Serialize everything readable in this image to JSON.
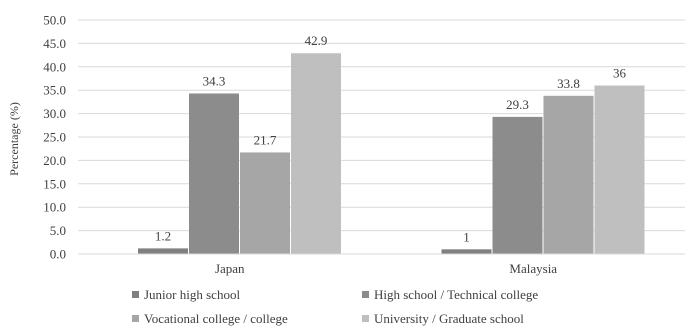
{
  "chart_data": {
    "type": "bar",
    "title": "",
    "xlabel": "",
    "ylabel": "Percentage (%)",
    "ylim": [
      0,
      50
    ],
    "ytick_step": 5,
    "ytick_format_decimals": 1,
    "grid": "horizontal",
    "legend_position": "bottom",
    "categories": [
      "Japan",
      "Malaysia"
    ],
    "series": [
      {
        "name": "Junior high school",
        "values": [
          1.2,
          1
        ],
        "labels": [
          "1.2",
          "1"
        ],
        "color": "#808080"
      },
      {
        "name": "High school / Technical college",
        "values": [
          34.3,
          29.3
        ],
        "labels": [
          "34.3",
          "29.3"
        ],
        "color": "#8c8c8c"
      },
      {
        "name": "Vocational college / college",
        "values": [
          21.7,
          33.8
        ],
        "labels": [
          "21.7",
          "33.8"
        ],
        "color": "#a6a6a6"
      },
      {
        "name": "University / Graduate school",
        "values": [
          42.9,
          36
        ],
        "labels": [
          "42.9",
          "36"
        ],
        "color": "#bfbfbf"
      }
    ]
  }
}
